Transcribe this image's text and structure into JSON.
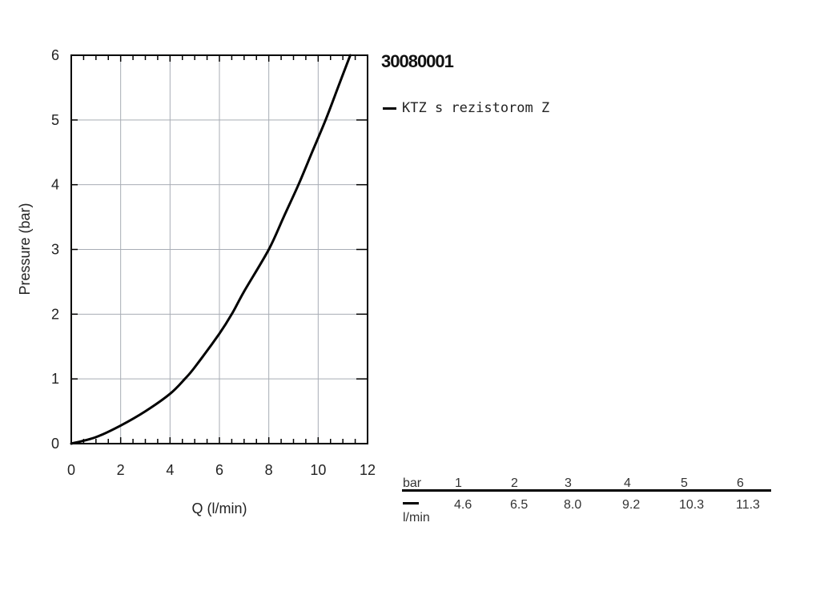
{
  "chart_data": {
    "type": "line",
    "title": "30080001",
    "xlabel": "Q (l/min)",
    "ylabel": "Pressure (bar)",
    "xlim": [
      0,
      12
    ],
    "ylim": [
      0,
      6
    ],
    "xticks": [
      0,
      2,
      4,
      6,
      8,
      10,
      12
    ],
    "yticks": [
      0,
      1,
      2,
      3,
      4,
      5,
      6
    ],
    "grid": true,
    "legend_position": "top-right",
    "series": [
      {
        "name": "KTZ s rezistorom Z",
        "color": "#000000",
        "points": [
          [
            0,
            0
          ],
          [
            1,
            0.1
          ],
          [
            2,
            0.28
          ],
          [
            3,
            0.5
          ],
          [
            4,
            0.77
          ],
          [
            4.6,
            1
          ],
          [
            5,
            1.18
          ],
          [
            6,
            1.7
          ],
          [
            6.5,
            2
          ],
          [
            7,
            2.35
          ],
          [
            8,
            3
          ],
          [
            8.6,
            3.5
          ],
          [
            9.2,
            4
          ],
          [
            9.75,
            4.5
          ],
          [
            10.3,
            5
          ],
          [
            10.8,
            5.5
          ],
          [
            11.3,
            6
          ]
        ]
      }
    ]
  },
  "data_table": {
    "row_label_top": "bar",
    "row_label_bottom": "l/min",
    "bar_values": [
      "1",
      "2",
      "3",
      "4",
      "5",
      "6"
    ],
    "flow_values": [
      "4.6",
      "6.5",
      "8.0",
      "9.2",
      "10.3",
      "11.3"
    ]
  }
}
